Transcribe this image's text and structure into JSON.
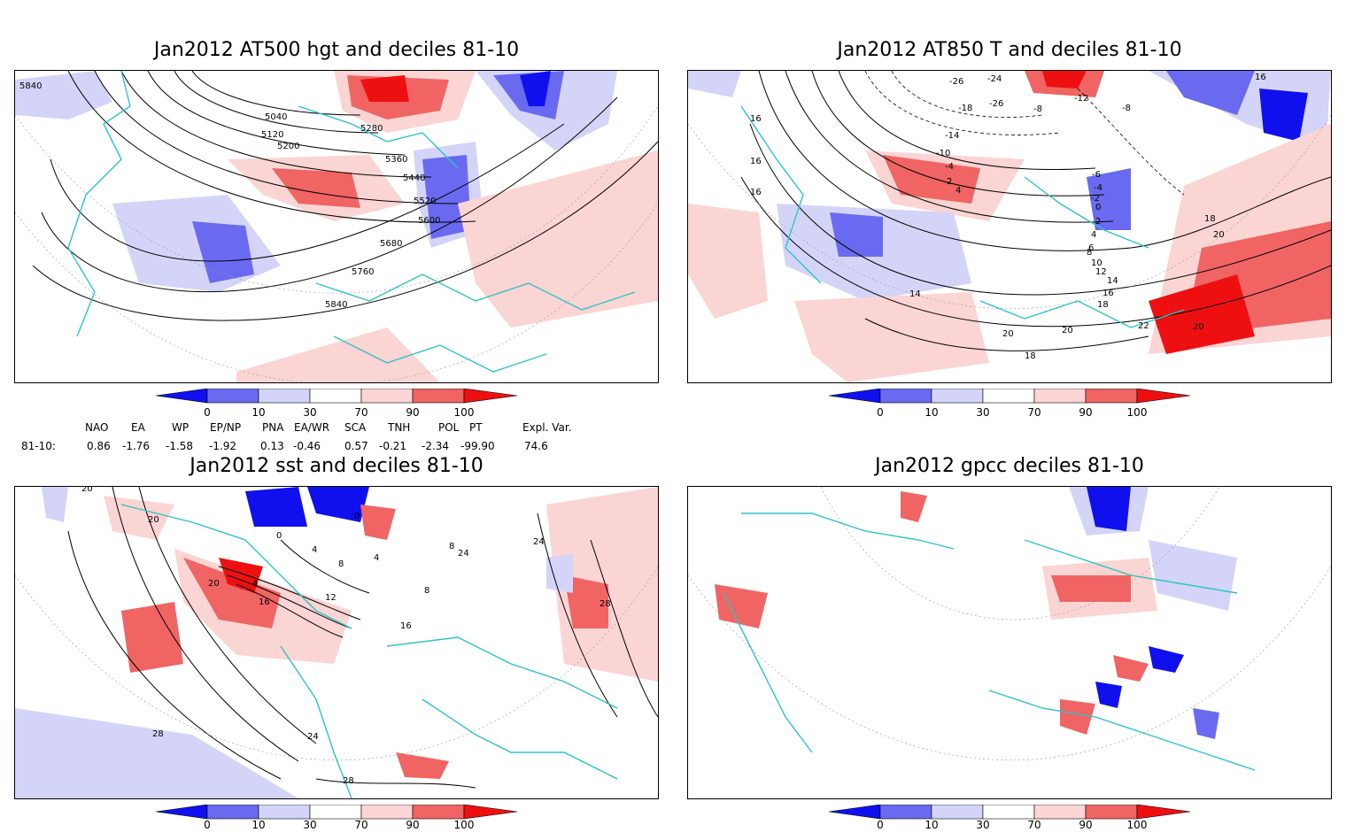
{
  "colors": {
    "blue_strong": "#1010ee",
    "blue_mid": "#6a6af0",
    "blue_light": "#d4d4f8",
    "red_light": "#fbd4d4",
    "red_mid": "#f06464",
    "red_strong": "#ee1010",
    "coast": "#2ec4c4",
    "contour": "#000000"
  },
  "panels": [
    {
      "title": "Jan2012 AT500 hgt and deciles 81-10",
      "contour_labels": [
        "5840",
        "5040",
        "5120",
        "5200",
        "5280",
        "5360",
        "5440",
        "5520",
        "5600",
        "5680",
        "5760",
        "5840"
      ]
    },
    {
      "title": "Jan2012 AT850 T and deciles 81-10",
      "contour_labels": [
        "-26",
        "-24",
        "-18",
        "-26",
        "-14",
        "-10",
        "-8",
        "-12",
        "-8",
        "-4",
        "2",
        "4",
        "16",
        "16",
        "16",
        "16",
        "18",
        "20",
        "14",
        "12",
        "10",
        "8",
        "6",
        "4",
        "2",
        "0",
        "-2",
        "-4",
        "-6",
        "14",
        "16",
        "18",
        "20",
        "20",
        "18",
        "22",
        "20"
      ]
    },
    {
      "title": "Jan2012 sst and deciles 81-10",
      "contour_labels": [
        "20",
        "20",
        "24",
        "28",
        "0",
        "4",
        "8",
        "12",
        "16",
        "20",
        "4",
        "0",
        "8",
        "16",
        "4",
        "24",
        "28",
        "24",
        "28",
        "8"
      ]
    },
    {
      "title": "Jan2012 gpcc deciles 81-10",
      "contour_labels": []
    }
  ],
  "colorbar_ticks": [
    "0",
    "10",
    "30",
    "70",
    "90",
    "100"
  ],
  "teleconnections": {
    "headers": [
      "NAO",
      "EA",
      "WP",
      "EP/NP",
      "PNA",
      "EA/WR",
      "SCA",
      "TNH",
      "POL",
      "PT",
      "Expl. Var."
    ],
    "row_label": "81-10:",
    "values": [
      "0.86",
      "-1.76",
      "-1.58",
      "-1.92",
      "0.13",
      "-0.46",
      "0.57",
      "-0.21",
      "-2.34",
      "-99.90",
      "74.6"
    ]
  }
}
